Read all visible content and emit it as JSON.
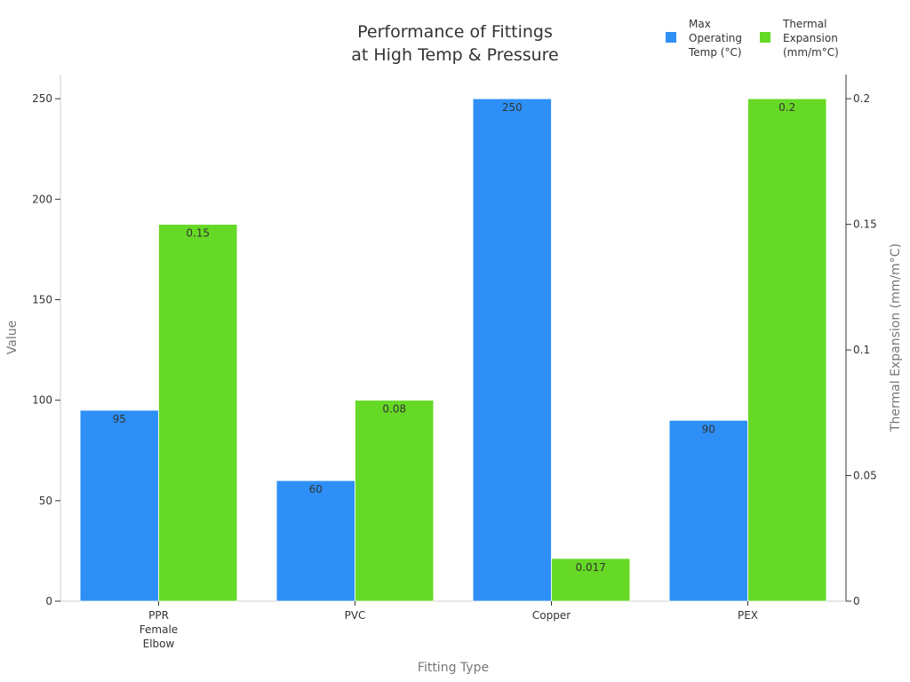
{
  "chart_data": {
    "type": "bar",
    "title_lines": [
      "Performance of Fittings",
      "at High Temp & Pressure"
    ],
    "xlabel": "Fitting Type",
    "ylabel": "Value",
    "y2label": "Thermal Expansion (mm/m°C)",
    "categories": [
      {
        "name": "PPR Female Elbow",
        "lines": [
          "PPR",
          "Female",
          "Elbow"
        ]
      },
      {
        "name": "PVC",
        "lines": [
          "PVC"
        ]
      },
      {
        "name": "Copper",
        "lines": [
          "Copper"
        ]
      },
      {
        "name": "PEX",
        "lines": [
          "PEX"
        ]
      }
    ],
    "series": [
      {
        "name": "Max Operating Temp (°C)",
        "legend_lines": [
          "Max",
          "Operating",
          "Temp (°C)"
        ],
        "axis": "left",
        "color": "#2e90f7",
        "values": [
          95,
          60,
          250,
          90
        ],
        "labels": [
          "95",
          "60",
          "250",
          "90"
        ]
      },
      {
        "name": "Thermal Expansion (mm/m°C)",
        "legend_lines": [
          "Thermal",
          "Expansion",
          "(mm/m°C)"
        ],
        "axis": "right",
        "color": "#66d926",
        "values": [
          0.15,
          0.08,
          0.017,
          0.2
        ],
        "labels": [
          "0.15",
          "0.08",
          "0.017",
          "0.2"
        ]
      }
    ],
    "y_left": {
      "range": [
        0,
        262
      ],
      "ticks": [
        0,
        50,
        100,
        150,
        200,
        250
      ],
      "tick_labels": [
        "0",
        "50",
        "100",
        "150",
        "200",
        "250"
      ]
    },
    "y_right": {
      "range": [
        0,
        0.2096
      ],
      "ticks": [
        0,
        0.05,
        0.1,
        0.15,
        0.2
      ],
      "tick_labels": [
        "0",
        "0.05",
        "0.1",
        "0.15",
        "0.2"
      ]
    },
    "grid": false,
    "legend_position": "top-right"
  }
}
